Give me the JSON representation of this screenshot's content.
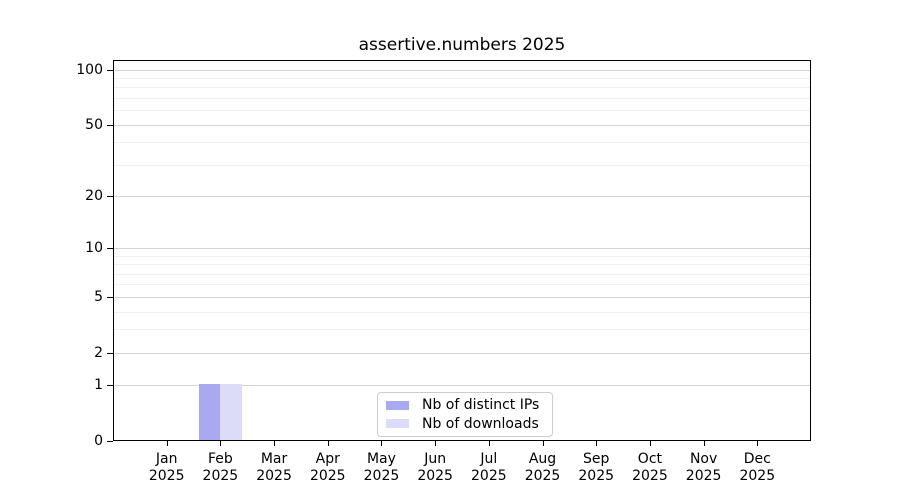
{
  "title": "assertive.numbers 2025",
  "legend": {
    "items": [
      {
        "label": "Nb of distinct IPs",
        "color": "#a9a9f2"
      },
      {
        "label": "Nb of downloads",
        "color": "#dcdcf8"
      }
    ],
    "position": "bottom-center"
  },
  "colors": {
    "distinct_ips_bar": "#a9a9f2",
    "downloads_bar": "#dcdcf8",
    "major_gridline": "#d4d4d4",
    "minor_gridline": "#f0f0f0",
    "axis": "#000000",
    "legend_border": "#cccccc"
  },
  "chart_data": {
    "type": "bar",
    "title": "assertive.numbers 2025",
    "categories": [
      "Jan 2025",
      "Feb 2025",
      "Mar 2025",
      "Apr 2025",
      "May 2025",
      "Jun 2025",
      "Jul 2025",
      "Aug 2025",
      "Sep 2025",
      "Oct 2025",
      "Nov 2025",
      "Dec 2025"
    ],
    "series": [
      {
        "name": "Nb of distinct IPs",
        "color": "#a9a9f2",
        "values": [
          0,
          1,
          0,
          0,
          0,
          0,
          0,
          0,
          0,
          0,
          0,
          0
        ]
      },
      {
        "name": "Nb of downloads",
        "color": "#dcdcf8",
        "values": [
          0,
          1,
          0,
          0,
          0,
          0,
          0,
          0,
          0,
          0,
          0,
          0
        ]
      }
    ],
    "xlabel": "",
    "ylabel": "",
    "yscale": "log1p",
    "ylim": [
      0,
      113
    ],
    "yticks_major": [
      0,
      1,
      2,
      5,
      10,
      20,
      50,
      100
    ],
    "yticks_minor": [
      3,
      4,
      6,
      7,
      8,
      9,
      30,
      40,
      60,
      70,
      80,
      90
    ],
    "grid": "horizontal",
    "legend_position": "bottom-center"
  }
}
